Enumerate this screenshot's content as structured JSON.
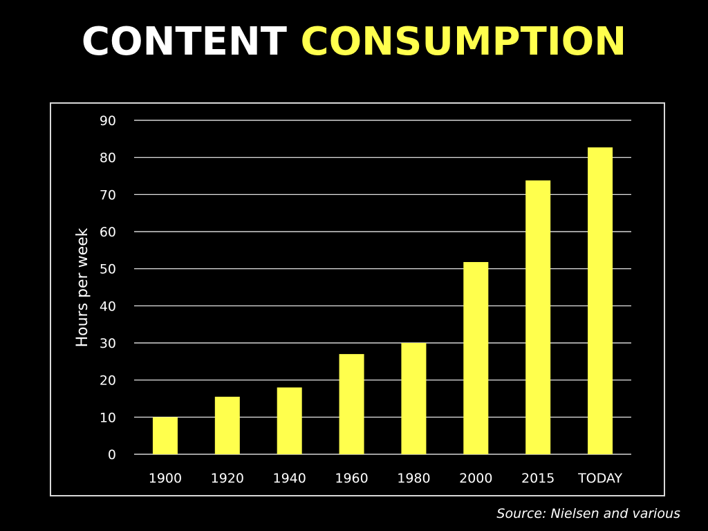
{
  "title": {
    "part1": "CONTENT",
    "part2": "CONSUMPTION"
  },
  "source": "Source: Nielsen and various",
  "colors": {
    "bar": "#ffff4d",
    "text": "#ffffff",
    "grid": "#ffffff",
    "title_highlight": "#ffff4d",
    "background": "#000000"
  },
  "chart_data": {
    "type": "bar",
    "categories": [
      "1900",
      "1920",
      "1940",
      "1960",
      "1980",
      "2000",
      "2015",
      "TODAY"
    ],
    "values": [
      10,
      15.5,
      18,
      27,
      30,
      51.8,
      73.8,
      82.7
    ],
    "ylabel": "Hours per week",
    "xlabel": "",
    "ylim": [
      0,
      90
    ],
    "yticks": [
      0,
      10,
      20,
      30,
      40,
      50,
      60,
      70,
      80,
      90
    ],
    "grid": true,
    "legend": false
  }
}
